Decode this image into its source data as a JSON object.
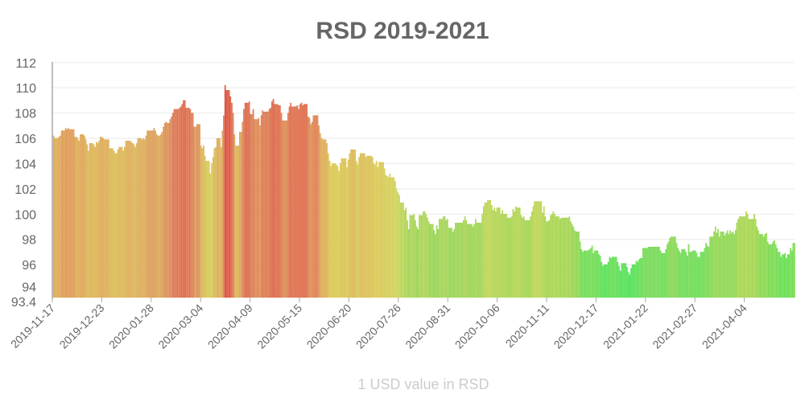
{
  "chart_data": {
    "type": "bar",
    "title": "RSD 2019-2021",
    "xlabel": "1 USD value in RSD",
    "ylabel": "",
    "ylim": [
      93.4,
      112
    ],
    "y_ticks": [
      "112",
      "110",
      "108",
      "106",
      "104",
      "102",
      "100",
      "98",
      "96",
      "94",
      "93.4"
    ],
    "x_tick_labels": [
      "2019-11-17",
      "2019-12-23",
      "2020-01-28",
      "2020-03-04",
      "2020-04-09",
      "2020-05-15",
      "2020-06-20",
      "2020-07-26",
      "2020-08-31",
      "2020-10-06",
      "2020-11-11",
      "2020-12-17",
      "2021-01-22",
      "2021-02-27",
      "2021-04-04"
    ],
    "grid": true,
    "color_scale": {
      "low": "#2ee040",
      "mid": "#d4c23a",
      "high": "#d83020"
    },
    "values": [
      106.2,
      106.0,
      106.0,
      106.0,
      106.1,
      106.2,
      106.6,
      106.6,
      106.6,
      106.8,
      106.7,
      106.8,
      106.7,
      106.7,
      106.7,
      106.7,
      106.1,
      106.1,
      106.0,
      105.8,
      106.3,
      106.3,
      106.3,
      106.2,
      105.9,
      105.5,
      105.0,
      105.6,
      105.6,
      105.6,
      105.5,
      105.3,
      105.7,
      105.6,
      105.8,
      106.1,
      106.1,
      106.0,
      105.9,
      105.9,
      105.9,
      105.9,
      105.2,
      105.2,
      105.2,
      105.0,
      104.8,
      104.8,
      105.1,
      105.3,
      105.3,
      105.3,
      105.0,
      105.3,
      105.8,
      105.8,
      105.8,
      105.8,
      105.7,
      105.6,
      105.5,
      105.3,
      105.6,
      106.0,
      106.0,
      106.0,
      105.9,
      106.0,
      105.9,
      106.2,
      106.6,
      106.6,
      106.6,
      106.6,
      106.6,
      106.8,
      106.6,
      106.3,
      106.2,
      106.2,
      106.3,
      106.5,
      106.9,
      107.2,
      107.3,
      107.2,
      107.2,
      107.5,
      107.7,
      108.0,
      108.3,
      108.3,
      108.3,
      108.3,
      108.4,
      108.5,
      108.7,
      109.0,
      109.0,
      108.4,
      108.4,
      108.4,
      108.3,
      108.0,
      108.0,
      106.9,
      106.9,
      107.1,
      107.1,
      107.1,
      105.4,
      105.2,
      105.4,
      104.6,
      104.2,
      104.2,
      104.2,
      103.2,
      104.0,
      104.5,
      105.2,
      105.3,
      106.0,
      106.0,
      106.0,
      105.3,
      106.6,
      107.8,
      110.2,
      109.8,
      109.8,
      109.8,
      109.3,
      108.8,
      108.0,
      106.3,
      105.4,
      105.4,
      105.4,
      106.5,
      106.5,
      107.3,
      108.3,
      108.8,
      108.8,
      108.8,
      108.9,
      107.9,
      107.9,
      108.3,
      107.5,
      107.5,
      107.5,
      107.6,
      107.0,
      107.8,
      108.2,
      108.1,
      108.1,
      108.1,
      108.1,
      108.3,
      108.4,
      108.9,
      109.1,
      108.7,
      108.7,
      108.7,
      108.6,
      108.6,
      108.0,
      107.4,
      107.4,
      107.4,
      107.4,
      108.0,
      108.5,
      108.8,
      108.5,
      108.5,
      108.5,
      108.5,
      108.6,
      108.3,
      108.7,
      108.8,
      108.6,
      108.7,
      108.7,
      108.7,
      107.7,
      107.6,
      107.1,
      107.3,
      107.8,
      107.8,
      107.8,
      107.8,
      107.0,
      106.4,
      106.0,
      105.9,
      105.9,
      105.9,
      105.6,
      104.8,
      104.2,
      103.8,
      104.0,
      104.0,
      104.0,
      103.9,
      103.8,
      103.4,
      104.0,
      104.4,
      104.4,
      104.4,
      104.4,
      103.7,
      104.3,
      104.8,
      105.1,
      105.1,
      105.1,
      105.1,
      104.2,
      103.9,
      104.5,
      104.8,
      104.8,
      104.8,
      104.8,
      104.5,
      104.6,
      104.6,
      104.6,
      104.6,
      104.5,
      104.0,
      103.9,
      104.2,
      103.7,
      104.1,
      104.1,
      104.1,
      104.1,
      103.6,
      103.1,
      103.0,
      102.9,
      103.2,
      102.9,
      102.9,
      102.9,
      102.6,
      102.0,
      101.7,
      101.5,
      100.9,
      100.9,
      100.9,
      100.3,
      100.5,
      99.5,
      98.8,
      99.9,
      99.9,
      99.9,
      100.0,
      99.5,
      99.0,
      98.8,
      99.9,
      99.9,
      99.9,
      100.2,
      100.2,
      100.0,
      99.7,
      99.4,
      99.2,
      99.2,
      99.2,
      98.7,
      98.4,
      99.1,
      98.8,
      99.6,
      99.6,
      99.6,
      99.8,
      99.8,
      99.5,
      99.6,
      98.9,
      98.9,
      98.9,
      98.6,
      98.8,
      99.3,
      99.3,
      99.3,
      99.3,
      99.3,
      99.3,
      99.5,
      99.8,
      99.5,
      99.2,
      99.2,
      99.2,
      99.2,
      99.0,
      99.2,
      99.6,
      99.3,
      99.3,
      99.3,
      99.3,
      100.0,
      100.6,
      100.9,
      100.9,
      101.1,
      101.1,
      101.1,
      100.7,
      100.3,
      100.5,
      100.2,
      100.5,
      100.5,
      100.5,
      100.0,
      100.3,
      100.0,
      100.0,
      100.0,
      99.7,
      99.7,
      99.7,
      99.8,
      100.4,
      100.2,
      100.6,
      100.5,
      100.5,
      100.5,
      99.9,
      99.7,
      99.8,
      99.5,
      99.5,
      99.5,
      99.5,
      99.8,
      100.2,
      100.6,
      101.0,
      101.0,
      101.0,
      101.0,
      101.0,
      101.0,
      100.1,
      100.6,
      99.8,
      99.4,
      99.4,
      99.5,
      99.9,
      100.0,
      100.2,
      100.0,
      99.8,
      99.8,
      99.8,
      99.6,
      99.7,
      99.7,
      99.7,
      99.7,
      99.7,
      99.7,
      99.8,
      99.4,
      99.2,
      99.0,
      98.7,
      98.6,
      98.6,
      98.6,
      97.8,
      97.2,
      97.0,
      97.1,
      97.1,
      97.1,
      97.1,
      97.2,
      97.3,
      97.5,
      96.9,
      97.1,
      97.1,
      97.1,
      96.8,
      96.7,
      96.2,
      95.9,
      96.0,
      96.0,
      96.0,
      96.2,
      96.6,
      96.5,
      96.6,
      96.6,
      96.6,
      96.6,
      96.2,
      95.9,
      95.5,
      96.1,
      96.1,
      96.1,
      96.1,
      95.8,
      95.4,
      95.2,
      95.7,
      96.0,
      96.0,
      96.0,
      96.3,
      96.2,
      96.4,
      96.5,
      96.5,
      97.3,
      97.3,
      97.3,
      97.3,
      97.4,
      97.4,
      97.4,
      97.4,
      97.4,
      97.4,
      97.4,
      97.4,
      97.4,
      97.1,
      96.9,
      96.9,
      96.9,
      97.2,
      97.6,
      97.8,
      98.1,
      98.2,
      98.2,
      98.2,
      98.2,
      97.7,
      97.3,
      97.1,
      96.9,
      97.2,
      97.2,
      97.2,
      97.0,
      96.7,
      97.6,
      97.0,
      97.0,
      97.1,
      97.1,
      97.1,
      96.9,
      96.6,
      96.6,
      97.0,
      97.0,
      97.0,
      97.3,
      97.7,
      97.5,
      97.4,
      98.2,
      98.2,
      98.2,
      98.6,
      99.0,
      98.5,
      98.8,
      98.2,
      98.6,
      98.6,
      98.6,
      98.3,
      98.5,
      98.7,
      98.4,
      98.7,
      98.5,
      98.6,
      98.4,
      98.7,
      99.3,
      99.6,
      99.8,
      99.8,
      99.8,
      99.8,
      99.8,
      100.2,
      100.0,
      99.6,
      99.6,
      99.6,
      99.6,
      100.0,
      99.6,
      99.0,
      98.7,
      98.4,
      98.4,
      98.4,
      98.2,
      98.4,
      98.5,
      97.8,
      97.6,
      97.6,
      97.6,
      97.8,
      97.9,
      97.6,
      97.3,
      97.0,
      97.0,
      96.6,
      96.8,
      96.8,
      96.9,
      96.5,
      96.8,
      96.8,
      97.3,
      97.1,
      97.7,
      97.7
    ]
  }
}
